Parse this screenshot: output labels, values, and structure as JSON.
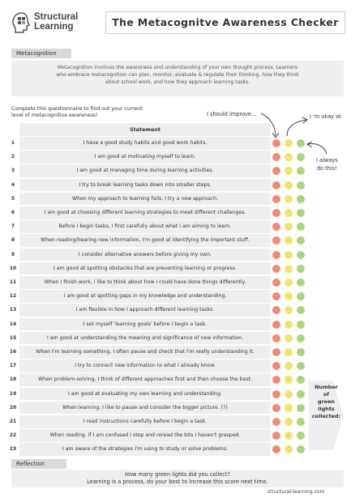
{
  "header": {
    "logo_line1": "Structural",
    "logo_line2": "Learning",
    "title": "The Metacognitve Awareness Checker"
  },
  "metacognition": {
    "label": "Metacognition",
    "text_line1": "Metacognition involves the awareness and understanding of your own thought process. Learners",
    "text_line2": "who embrace metacognition can plan, monitor, evaluate & regulate their thinking, how they think",
    "text_line3": "about school work, and how they approach learning tasks."
  },
  "intro_line1": "Complete this questionnaire to find out your current",
  "intro_line2": "level of metacognitive awareness!",
  "annotations": {
    "improve": "I should improve...",
    "okay": "I 'm okay at",
    "always_line1": "I always",
    "always_line2": "do this!"
  },
  "table": {
    "header": "Statement",
    "rows": [
      {
        "num": "1",
        "text": "I have a good study habits and good work habits."
      },
      {
        "num": "2",
        "text": "I am good at motivating myself to learn."
      },
      {
        "num": "3",
        "text": "I am good at managing time during learning activities."
      },
      {
        "num": "4",
        "text": "I try to break learning tasks down into smaller steps."
      },
      {
        "num": "5",
        "text": "When my approach to learning fails, I try a new approach."
      },
      {
        "num": "6",
        "text": "I am good at choosing different learning strategies to meet different challenges."
      },
      {
        "num": "7",
        "text": "Before I begin tasks, I first carefully about what I am aiming to learn."
      },
      {
        "num": "8",
        "text": "When reading/hearing new information, I'm good at identifying the important stuff."
      },
      {
        "num": "9",
        "text": "I consider alternative answers before giving my own."
      },
      {
        "num": "10",
        "text": "I am good at spotting obstacles that are preventing learning or progress."
      },
      {
        "num": "11",
        "text": "When I finish work, I like to think about how I could have done things differently."
      },
      {
        "num": "12",
        "text": "I am good at spotting gaps in my knowledge and understanding."
      },
      {
        "num": "13",
        "text": "I am flexible in how I approach different learning tasks."
      },
      {
        "num": "14",
        "text": "I set myself 'learning goals' before I begin a task."
      },
      {
        "num": "15",
        "text": "I am good at understanding the meaning and significance of new information."
      },
      {
        "num": "16",
        "text": "When I'm learning something, I often pause and check that I'm really understanding it."
      },
      {
        "num": "17",
        "text": "I try to connect new information to what I already know."
      },
      {
        "num": "18",
        "text": "When problem-solving, I think of different approaches first and then choose the best."
      },
      {
        "num": "19",
        "text": "I am good at evaluating my own learning and understanding."
      },
      {
        "num": "20",
        "text": "When learning, I like to pause and consider the bigger picture. (?)"
      },
      {
        "num": "21",
        "text": "I read instructions carefully before I begin a task."
      },
      {
        "num": "22",
        "text": "When reading, if I am confused I stop and reread the bits I haven't grasped."
      },
      {
        "num": "23",
        "text": "I am aware of the strategies I'm using to study or solve problems."
      }
    ]
  },
  "collected": {
    "line1": "Number",
    "line2": "of",
    "line3": "green",
    "line4": "lights",
    "line5": "collected:"
  },
  "reflection": {
    "label": "Reflection",
    "line1": "How many green lights did you collect?",
    "line2": "Learning is a process, do your best to increase this score next time."
  },
  "footer": "structural-learning.com",
  "colors": {
    "red": "#ef8a77",
    "yellow": "#eee56b",
    "green": "#a8d67a"
  }
}
